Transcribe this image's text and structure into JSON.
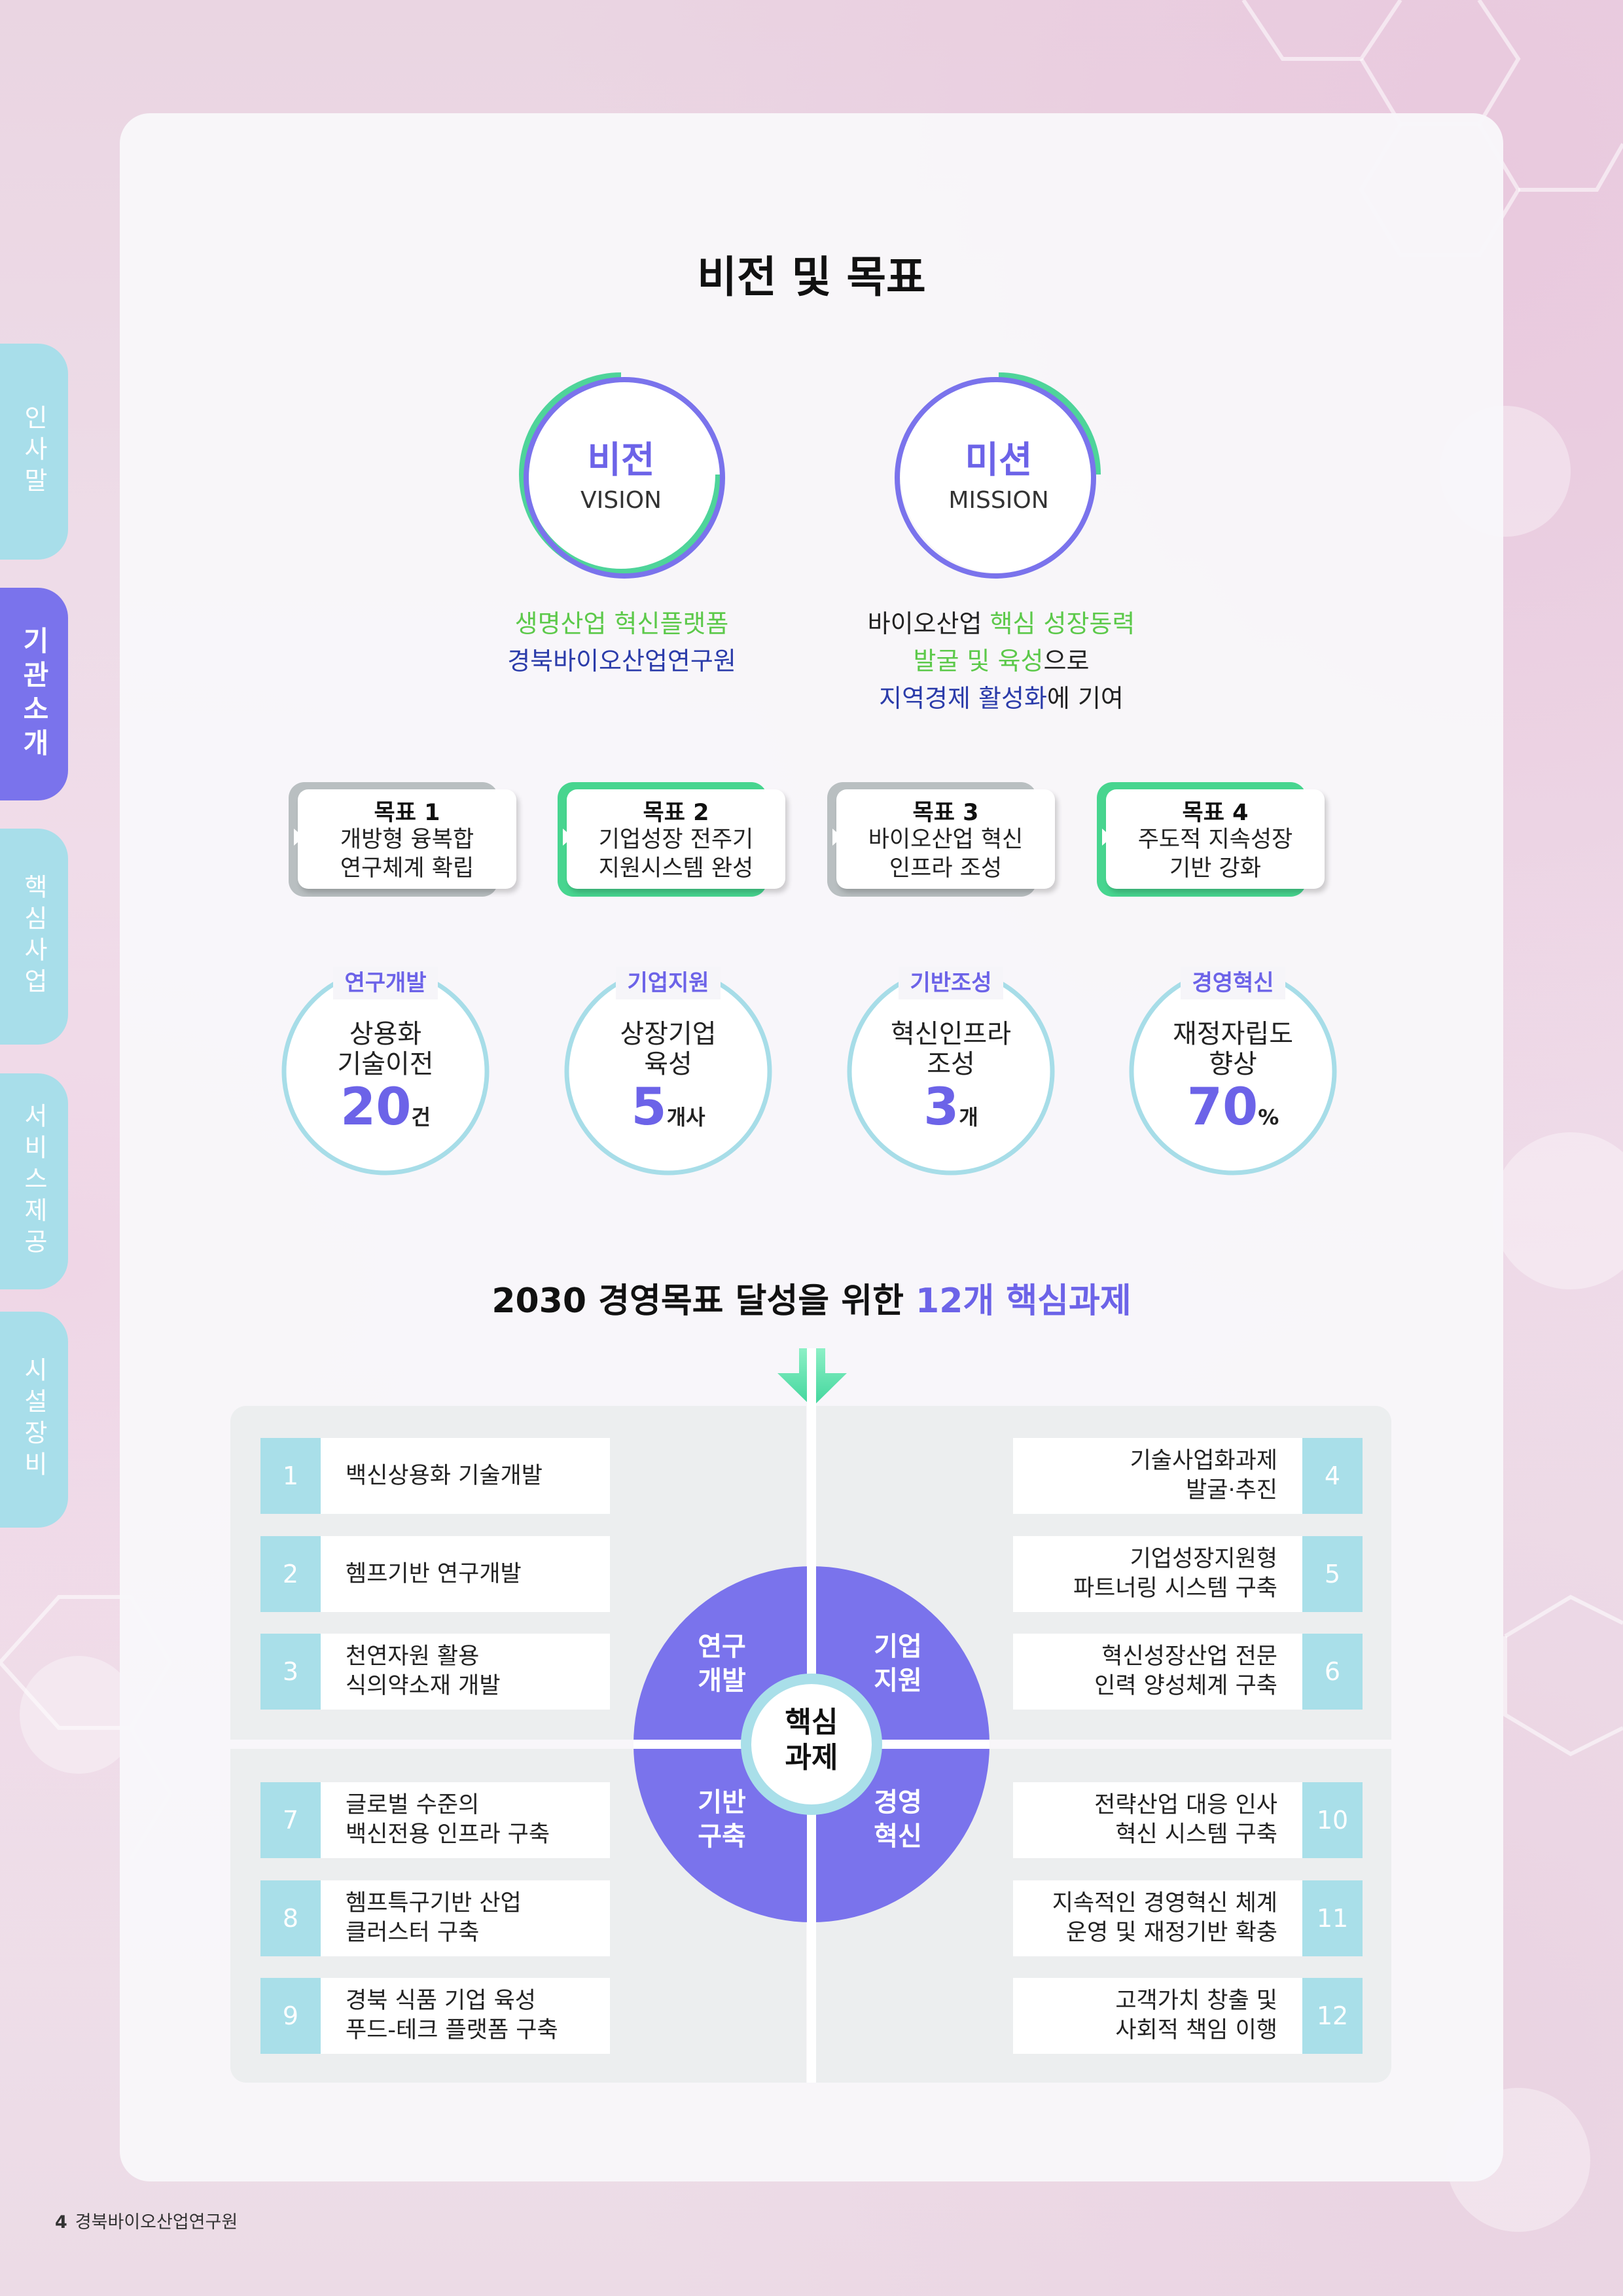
{
  "side_tabs": [
    "인사말",
    "기관소개",
    "핵심사업",
    "서비스제공",
    "시설장비"
  ],
  "page_title": "비전 및 목표",
  "vision": {
    "kr": "비전",
    "en": "VISION",
    "line1": "생명산업 혁신플랫폼",
    "line2": "경북바이오산업연구원"
  },
  "mission": {
    "kr": "미션",
    "en": "MISSION",
    "l1_a": "바이오산업 ",
    "l1_b": "핵심 성장동력",
    "l2_a": "발굴 및 육성",
    "l2_b": "으로",
    "l3_a": "지역경제 활성화",
    "l3_b": "에 기여"
  },
  "goals": [
    {
      "title": "목표 1",
      "line1": "개방형 융복합",
      "line2": "연구체계 확립"
    },
    {
      "title": "목표 2",
      "line1": "기업성장 전주기",
      "line2": "지원시스템 완성"
    },
    {
      "title": "목표 3",
      "line1": "바이오산업 혁신",
      "line2": "인프라 조성"
    },
    {
      "title": "목표 4",
      "line1": "주도적 지속성장",
      "line2": "기반 강화"
    }
  ],
  "kpis": [
    {
      "tag": "연구개발",
      "line1": "상용화",
      "line2": "기술이전",
      "value": "20",
      "unit": "건"
    },
    {
      "tag": "기업지원",
      "line1": "상장기업",
      "line2": "육성",
      "value": "5",
      "unit": "개사"
    },
    {
      "tag": "기반조성",
      "line1": "혁신인프라",
      "line2": "조성",
      "value": "3",
      "unit": "개"
    },
    {
      "tag": "경영혁신",
      "line1": "재정자립도",
      "line2": "향상",
      "value": "70",
      "unit": "%"
    }
  ],
  "tasks_title": {
    "prefix": "2030 경영목표 달성을 위한 ",
    "highlight": "12개 핵심과제"
  },
  "quadrants": {
    "tl": {
      "line1": "연구",
      "line2": "개발"
    },
    "tr": {
      "line1": "기업",
      "line2": "지원"
    },
    "bl": {
      "line1": "기반",
      "line2": "구축"
    },
    "br": {
      "line1": "경영",
      "line2": "혁신"
    }
  },
  "center": {
    "line1": "핵심",
    "line2": "과제"
  },
  "tasks": [
    {
      "num": "1",
      "line1": "백신상용화 기술개발",
      "line2": ""
    },
    {
      "num": "2",
      "line1": "헴프기반 연구개발",
      "line2": ""
    },
    {
      "num": "3",
      "line1": "천연자원 활용",
      "line2": "식의약소재 개발"
    },
    {
      "num": "4",
      "line1": "기술사업화과제",
      "line2": "발굴·추진"
    },
    {
      "num": "5",
      "line1": "기업성장지원형",
      "line2": "파트너링 시스템 구축"
    },
    {
      "num": "6",
      "line1": "혁신성장산업 전문",
      "line2": "인력 양성체계 구축"
    },
    {
      "num": "7",
      "line1": "글로벌 수준의",
      "line2": "백신전용 인프라 구축"
    },
    {
      "num": "8",
      "line1": "헴프특구기반 산업",
      "line2": "클러스터 구축"
    },
    {
      "num": "9",
      "line1": "경북 식품 기업 육성",
      "line2": "푸드-테크 플랫폼 구축"
    },
    {
      "num": "10",
      "line1": "전략산업 대응 인사",
      "line2": "혁신 시스템 구축"
    },
    {
      "num": "11",
      "line1": "지속적인 경영혁신 체계",
      "line2": "운영 및 재정기반 확충"
    },
    {
      "num": "12",
      "line1": "고객가치 창출 및",
      "line2": "사회적 책임 이행"
    }
  ],
  "footer": {
    "page": "4",
    "org": "경북바이오산업연구원"
  },
  "colors": {
    "accent": "#6c63e8",
    "green": "#5cc94a",
    "navy": "#2b3caa",
    "aqua": "#a9dfe9"
  }
}
